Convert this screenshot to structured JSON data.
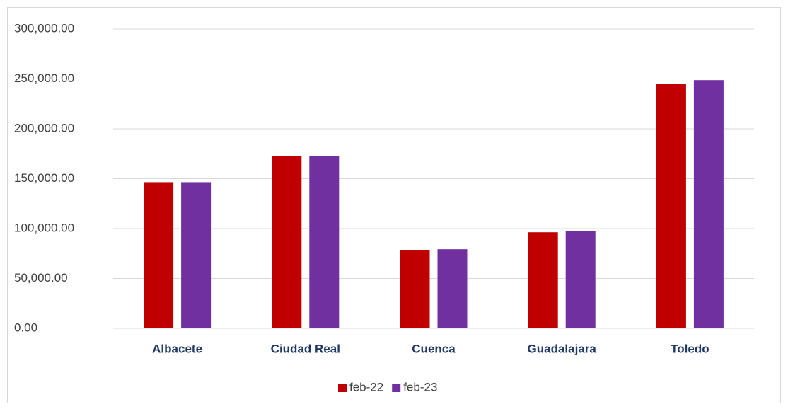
{
  "chart_data": {
    "type": "bar",
    "categories": [
      "Albacete",
      "Ciudad Real",
      "Cuenca",
      "Guadalajara",
      "Toledo"
    ],
    "series": [
      {
        "name": "feb-22",
        "color": "#c00000",
        "values": [
          146500,
          172500,
          78700,
          96300,
          245200
        ]
      },
      {
        "name": "feb-23",
        "color": "#7030a0",
        "values": [
          146500,
          173000,
          79300,
          97300,
          248800
        ]
      }
    ],
    "ylim": [
      0,
      300000
    ],
    "yticks": [
      {
        "value": 0,
        "label": "0.00"
      },
      {
        "value": 50000,
        "label": "50,000.00"
      },
      {
        "value": 100000,
        "label": "100,000.00"
      },
      {
        "value": 150000,
        "label": "150,000.00"
      },
      {
        "value": 200000,
        "label": "200,000.00"
      },
      {
        "value": 250000,
        "label": "250,000.00"
      },
      {
        "value": 300000,
        "label": "300,000.00"
      }
    ],
    "grid": true,
    "legend": "bottom"
  }
}
